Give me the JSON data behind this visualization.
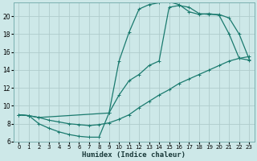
{
  "bg_color": "#cde8e8",
  "line_color": "#1a7a6e",
  "grid_color": "#b0cccc",
  "xlabel": "Humidex (Indice chaleur)",
  "xlabel_fontsize": 6.5,
  "tick_fontsize": 5.5,
  "xlim": [
    -0.5,
    23.5
  ],
  "ylim": [
    6,
    21.5
  ],
  "yticks": [
    6,
    8,
    10,
    12,
    14,
    16,
    18,
    20
  ],
  "xticks": [
    0,
    1,
    2,
    3,
    4,
    5,
    6,
    7,
    8,
    9,
    10,
    11,
    12,
    13,
    14,
    15,
    16,
    17,
    18,
    19,
    20,
    21,
    22,
    23
  ],
  "line1_x": [
    0,
    1,
    2,
    3,
    4,
    5,
    6,
    7,
    8,
    9,
    10,
    11,
    12,
    13,
    14,
    15,
    16,
    17,
    18,
    19,
    20,
    21,
    22,
    23
  ],
  "line1_y": [
    9.0,
    8.9,
    8.7,
    8.4,
    8.2,
    8.0,
    7.9,
    7.8,
    7.9,
    8.1,
    8.5,
    9.0,
    9.8,
    10.5,
    11.2,
    11.8,
    12.5,
    13.0,
    13.5,
    14.0,
    14.5,
    15.0,
    15.3,
    15.5
  ],
  "line2_x": [
    0,
    1,
    2,
    3,
    4,
    5,
    6,
    7,
    8,
    9,
    10,
    11,
    12,
    13,
    14,
    15,
    16,
    17,
    18,
    19,
    20,
    21,
    22,
    23
  ],
  "line2_y": [
    9.0,
    8.9,
    8.0,
    7.5,
    7.1,
    6.8,
    6.6,
    6.5,
    6.5,
    9.2,
    15.0,
    18.2,
    20.8,
    21.3,
    21.5,
    21.6,
    21.3,
    20.5,
    20.2,
    20.3,
    20.1,
    18.0,
    15.3,
    15.1
  ],
  "line3_x": [
    0,
    1,
    2,
    9,
    10,
    11,
    12,
    13,
    14,
    15,
    16,
    17,
    18,
    19,
    20,
    21,
    22,
    23
  ],
  "line3_y": [
    9.0,
    8.9,
    8.7,
    9.2,
    11.2,
    12.8,
    13.5,
    14.5,
    15.0,
    21.0,
    21.2,
    21.0,
    20.3,
    20.2,
    20.2,
    19.8,
    18.0,
    15.2
  ]
}
